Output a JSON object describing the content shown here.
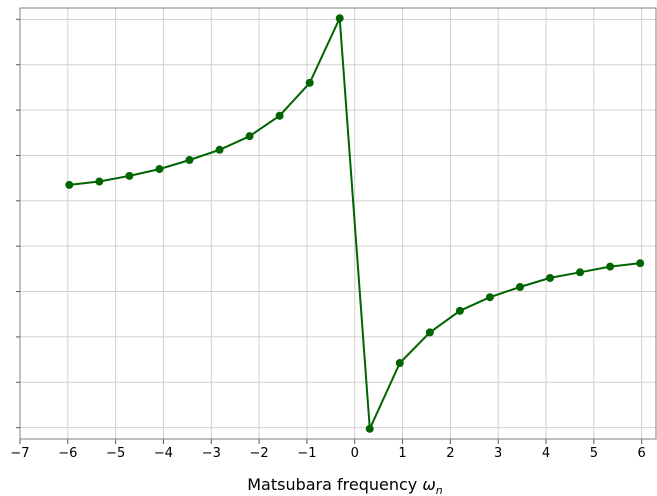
{
  "chart_data": {
    "type": "line",
    "title": "",
    "xlabel": "Matsubara frequency ω_n",
    "xlabel_main": "Matsubara frequency ",
    "xlabel_symbol": "ω",
    "xlabel_subscript": "n",
    "ylabel": "",
    "xlim": [
      -7,
      6.3
    ],
    "ylim": [
      -0.45,
      1.45
    ],
    "x_ticks": [
      -7,
      -6,
      -5,
      -4,
      -3,
      -2,
      -1,
      0,
      1,
      2,
      3,
      4,
      5,
      6
    ],
    "x_tick_labels": [
      "−7",
      "−6",
      "−5",
      "−4",
      "−3",
      "−2",
      "−1",
      "0",
      "1",
      "2",
      "3",
      "4",
      "5",
      "6"
    ],
    "y_ticks": [
      -0.4,
      -0.2,
      0.0,
      0.2,
      0.4,
      0.6,
      0.8,
      1.0,
      1.2,
      1.4
    ],
    "y_tick_labels_shown": false,
    "grid": true,
    "series": [
      {
        "color": "#006400",
        "marker": "circle",
        "x": [
          -5.969,
          -5.341,
          -4.712,
          -4.084,
          -3.456,
          -2.827,
          -2.199,
          -1.571,
          -0.942,
          -0.314,
          0.314,
          0.942,
          1.571,
          2.199,
          2.827,
          3.456,
          4.084,
          4.712,
          5.341,
          5.969
        ],
        "y": [
          0.67,
          0.685,
          0.71,
          0.74,
          0.78,
          0.825,
          0.885,
          0.975,
          1.12,
          1.405,
          -0.405,
          -0.115,
          0.02,
          0.115,
          0.175,
          0.22,
          0.26,
          0.285,
          0.31,
          0.325
        ]
      }
    ]
  }
}
